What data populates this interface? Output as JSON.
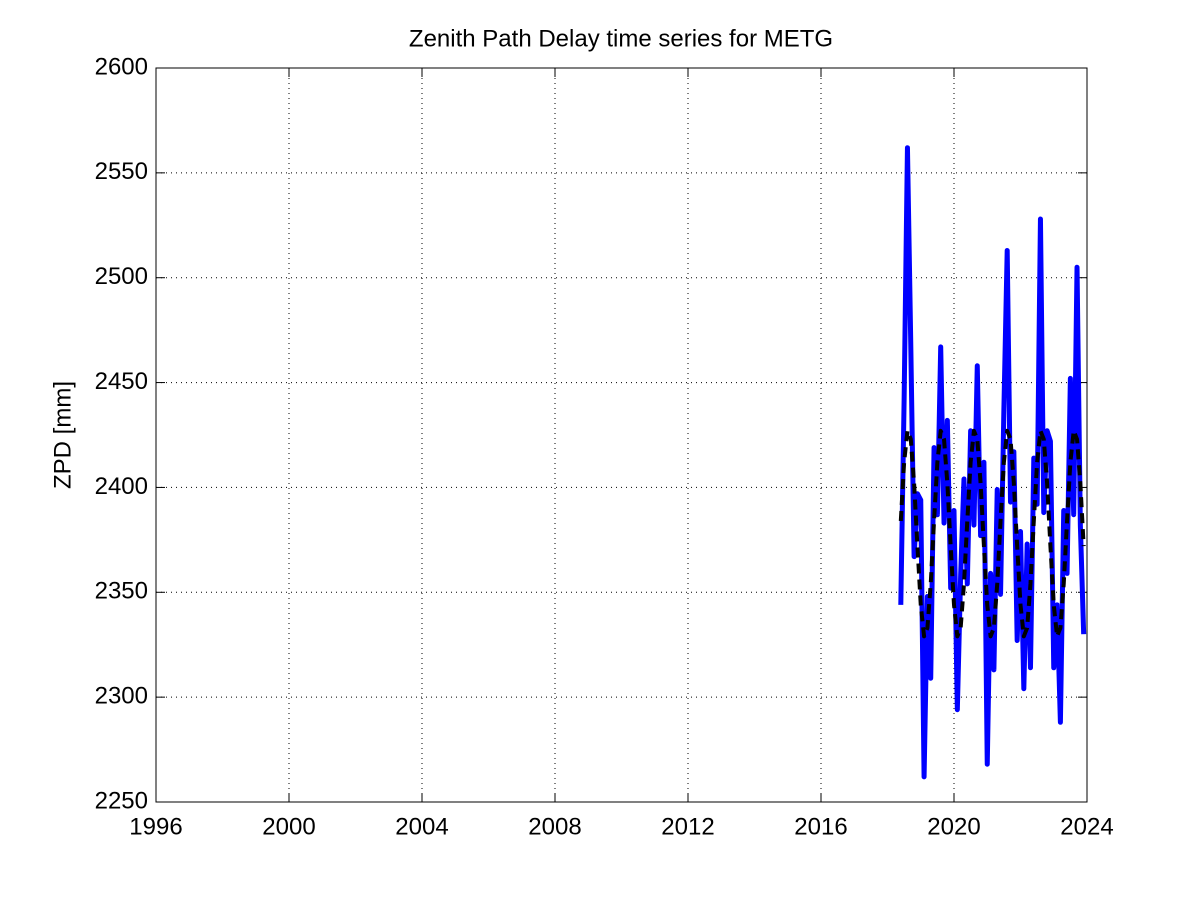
{
  "chart_data": {
    "type": "line",
    "title": "Zenith Path Delay time series for METG",
    "ylabel": "ZPD [mm]",
    "x": [
      2018.4,
      2018.5,
      2018.6,
      2018.7,
      2018.8,
      2018.9,
      2019.0,
      2019.1,
      2019.2,
      2019.3,
      2019.4,
      2019.5,
      2019.6,
      2019.7,
      2019.8,
      2019.9,
      2020.0,
      2020.1,
      2020.2,
      2020.3,
      2020.4,
      2020.5,
      2020.6,
      2020.7,
      2020.8,
      2020.9,
      2021.0,
      2021.1,
      2021.2,
      2021.3,
      2021.4,
      2021.5,
      2021.6,
      2021.7,
      2021.8,
      2021.9,
      2022.0,
      2022.1,
      2022.2,
      2022.3,
      2022.4,
      2022.5,
      2022.6,
      2022.7,
      2022.8,
      2022.9,
      2023.0,
      2023.1,
      2023.2,
      2023.3,
      2023.4,
      2023.5,
      2023.6,
      2023.7,
      2023.8,
      2023.9
    ],
    "series": [
      {
        "color": "#0000ff",
        "dash": false,
        "values": [
          2344,
          2442,
          2562,
          2468,
          2367,
          2397,
          2394,
          2262,
          2348,
          2309,
          2419,
          2387,
          2467,
          2383,
          2432,
          2352,
          2389,
          2294,
          2358,
          2404,
          2354,
          2427,
          2382,
          2458,
          2377,
          2412,
          2268,
          2359,
          2313,
          2399,
          2349,
          2437,
          2513,
          2393,
          2417,
          2327,
          2379,
          2304,
          2373,
          2314,
          2414,
          2392,
          2528,
          2388,
          2427,
          2422,
          2314,
          2344,
          2288,
          2389,
          2359,
          2452,
          2387,
          2505,
          2382,
          2330
        ]
      },
      {
        "color": "#000000",
        "dash": true,
        "values": [
          2384,
          2412,
          2427,
          2423,
          2402,
          2372,
          2344,
          2329,
          2333,
          2354,
          2384,
          2412,
          2427,
          2423,
          2402,
          2372,
          2344,
          2329,
          2333,
          2354,
          2384,
          2412,
          2427,
          2423,
          2402,
          2372,
          2344,
          2329,
          2333,
          2354,
          2384,
          2412,
          2427,
          2423,
          2402,
          2372,
          2344,
          2329,
          2333,
          2354,
          2384,
          2412,
          2427,
          2423,
          2402,
          2372,
          2344,
          2329,
          2333,
          2354,
          2384,
          2412,
          2427,
          2423,
          2402,
          2372
        ]
      }
    ],
    "xlim": [
      1996,
      2024
    ],
    "xticks": [
      1996,
      2000,
      2004,
      2008,
      2012,
      2016,
      2020,
      2024
    ],
    "ylim": [
      2250,
      2600
    ],
    "yticks": [
      2250,
      2300,
      2350,
      2400,
      2450,
      2500,
      2550,
      2600
    ],
    "grid": true
  }
}
